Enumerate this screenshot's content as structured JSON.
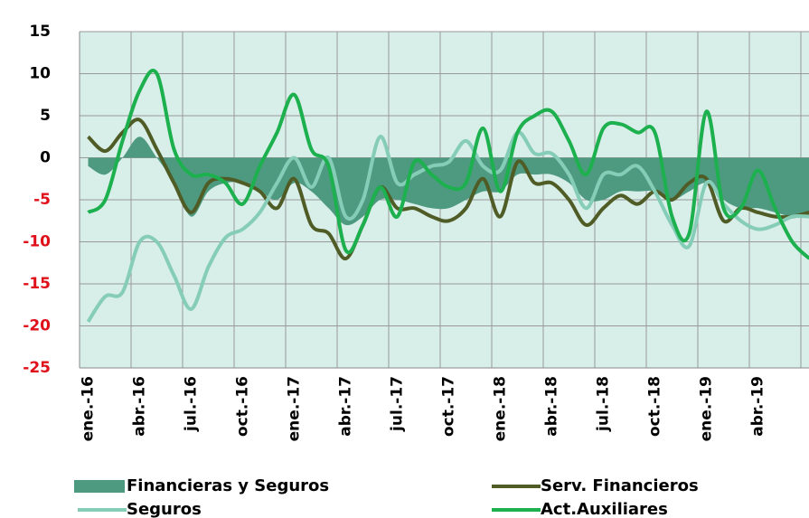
{
  "chart_data": {
    "type": "line",
    "categories": [
      "ene.-16",
      null,
      null,
      "abr.-16",
      null,
      null,
      "jul.-16",
      null,
      null,
      "oct.-16",
      null,
      null,
      "ene.-17",
      null,
      null,
      "abr.-17",
      null,
      null,
      "jul.-17",
      null,
      null,
      "oct.-17",
      null,
      null,
      "ene.-18",
      null,
      null,
      "abr.-18",
      null,
      null,
      "jul.-18",
      null,
      null,
      "oct.-18",
      null,
      null,
      "ene.-19",
      null,
      null,
      "abr.-19",
      null,
      null,
      null
    ],
    "ylim": [
      -25,
      15
    ],
    "yticks": [
      -25,
      -20,
      -15,
      -10,
      -5,
      0,
      5,
      10,
      15
    ],
    "grid": true,
    "legend": "bottom",
    "series": [
      {
        "name": "Financieras y Seguros",
        "kind": "area",
        "color": "#4e9a80",
        "values": [
          -1,
          -2,
          0,
          2.5,
          0,
          -3,
          -7,
          -4,
          -3,
          -3,
          -4,
          -5,
          -3,
          -4,
          -6,
          -8,
          -7,
          -5,
          -5,
          -5.5,
          -6,
          -6,
          -5,
          -4,
          -4,
          -2,
          -2,
          -2,
          -3,
          -5,
          -5,
          -4,
          -4,
          -4,
          -5,
          -4,
          -3,
          -5,
          -6,
          -6,
          -6.5,
          -7,
          -7
        ]
      },
      {
        "name": "Serv. Financieros",
        "kind": "line",
        "color": "#4f5c26",
        "values": [
          2.5,
          0.8,
          3,
          4.5,
          1,
          -3,
          -6.5,
          -3,
          -2.5,
          -3,
          -4,
          -6,
          -2.5,
          -8,
          -9,
          -12,
          -8,
          -3.5,
          -6,
          -6,
          -7,
          -7.5,
          -6,
          -2.5,
          -7,
          -0.5,
          -3,
          -3,
          -5,
          -8,
          -6,
          -4.5,
          -5.5,
          -4,
          -5,
          -3,
          -2.5,
          -7.5,
          -6,
          -6.5,
          -7,
          -7,
          -6.5
        ]
      },
      {
        "name": "Seguros",
        "kind": "line",
        "color": "#86cdb8",
        "values": [
          -19.5,
          -16.5,
          -16,
          -10,
          -10,
          -14,
          -18,
          -13,
          -9.5,
          -8.5,
          -6.5,
          -3,
          0,
          -3.5,
          0,
          -7,
          -5,
          2.5,
          -3,
          -2,
          -1,
          -0.5,
          2,
          -1,
          -1.5,
          3,
          0.5,
          0.5,
          -2,
          -6,
          -2,
          -2,
          -1,
          -4,
          -8,
          -10.5,
          -3,
          -5.5,
          -7.5,
          -8.5,
          -8,
          -7,
          -7
        ]
      },
      {
        "name": "Act.Auxiliares",
        "kind": "line",
        "color": "#1db04e",
        "values": [
          -6.5,
          -5,
          2,
          8,
          10,
          1,
          -2,
          -2,
          -3,
          -5.5,
          -1,
          3,
          7.5,
          1,
          -1,
          -11,
          -8,
          -3.5,
          -7,
          -0.5,
          -2,
          -3.5,
          -3,
          3.5,
          -4,
          3,
          5,
          5.5,
          2,
          -2,
          3.5,
          4,
          3,
          3,
          -7,
          -9,
          5.5,
          -6,
          -6,
          -1.5,
          -6,
          -10,
          -12
        ]
      }
    ]
  }
}
